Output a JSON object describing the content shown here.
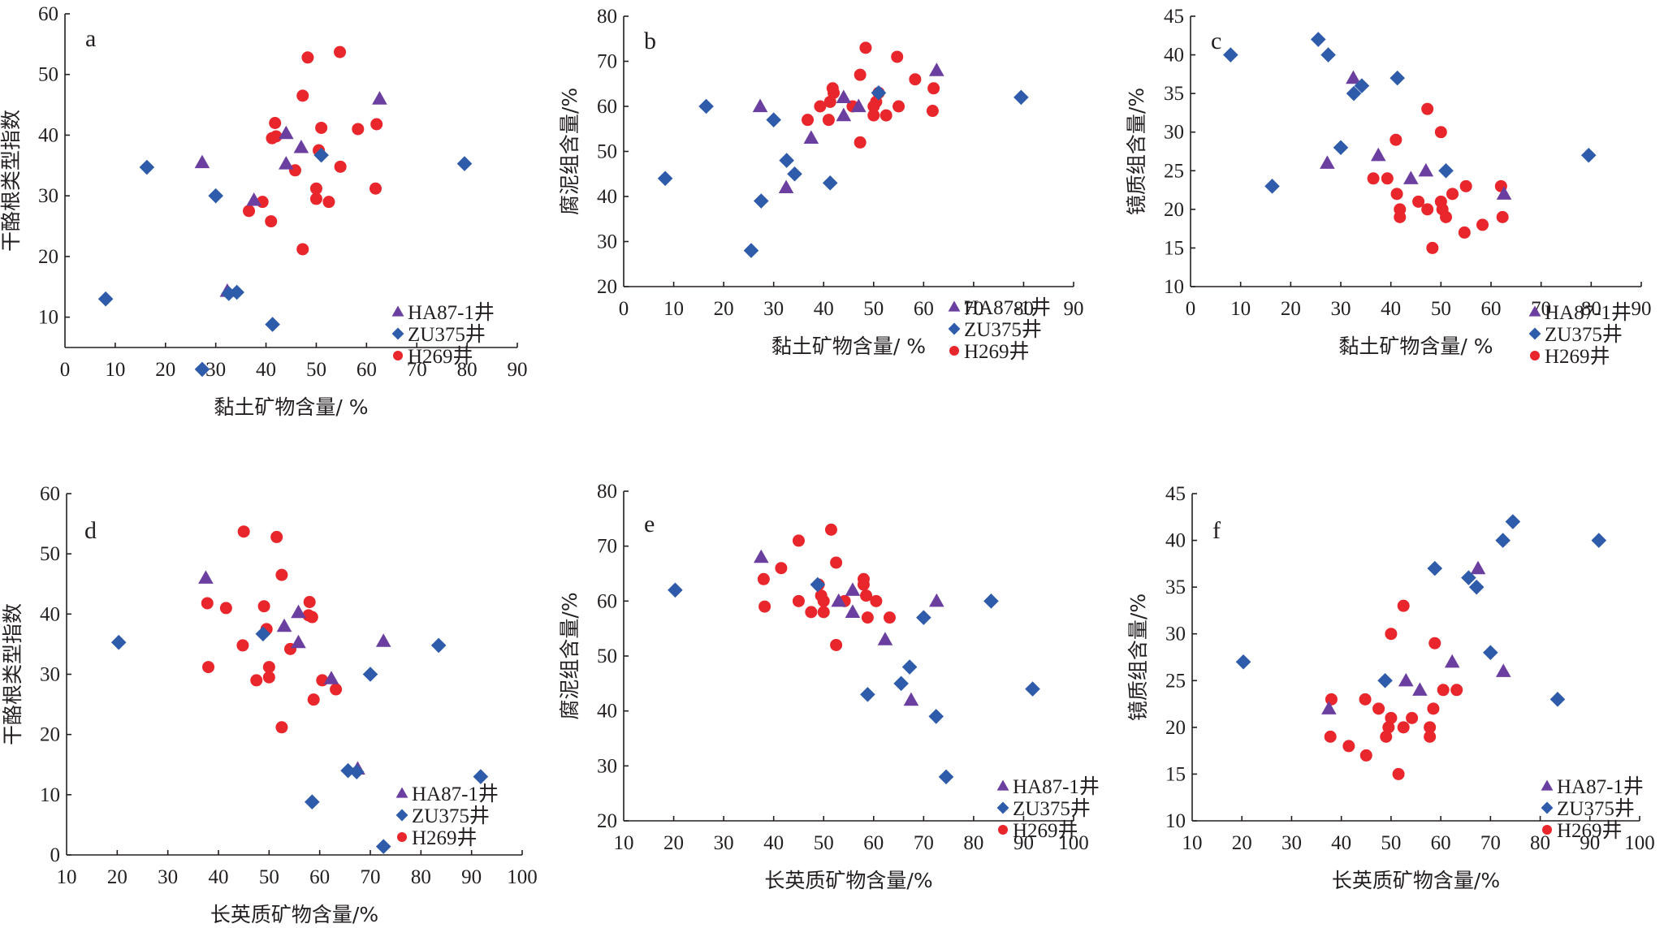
{
  "figure": {
    "series_styles": [
      {
        "name": "HA87-1井",
        "marker": "triangle",
        "color": "#6b3fa0"
      },
      {
        "name": "ZU375井",
        "marker": "diamond",
        "color": "#2f5caa"
      },
      {
        "name": "H269井",
        "marker": "circle",
        "color": "#e8262b"
      }
    ]
  },
  "chart_data": [
    {
      "type": "scatter",
      "panel": "a",
      "title": "",
      "xlabel": "黏土矿物含量/ %",
      "ylabel": "干酪根类型指数",
      "xlim": [
        0,
        90
      ],
      "ylim": [
        5,
        60
      ],
      "xticks": [
        0,
        10,
        20,
        30,
        40,
        50,
        60,
        70,
        80,
        90
      ],
      "yticks": [
        10,
        20,
        30,
        40,
        50,
        60
      ],
      "legend_position": "bottom-right",
      "series": [
        {
          "name": "HA87-1井",
          "points": [
            [
              27.3,
              35.5
            ],
            [
              32.3,
              14.3
            ],
            [
              37.6,
              29.3
            ],
            [
              44.0,
              40.3
            ],
            [
              44.0,
              35.3
            ],
            [
              47.0,
              38.0
            ],
            [
              62.6,
              46.0
            ]
          ]
        },
        {
          "name": "ZU375井",
          "points": [
            [
              8.1,
              13.0
            ],
            [
              16.3,
              34.7
            ],
            [
              27.3,
              1.4
            ],
            [
              30.0,
              30.0
            ],
            [
              32.6,
              13.9
            ],
            [
              34.2,
              14.1
            ],
            [
              41.3,
              8.8
            ],
            [
              51.0,
              36.7
            ],
            [
              79.5,
              35.3
            ]
          ]
        },
        {
          "name": "H269井",
          "points": [
            [
              36.6,
              27.5
            ],
            [
              39.3,
              29.0
            ],
            [
              41.0,
              25.8
            ],
            [
              41.2,
              39.5
            ],
            [
              41.8,
              42.0
            ],
            [
              42.0,
              39.8
            ],
            [
              45.8,
              34.2
            ],
            [
              47.3,
              46.5
            ],
            [
              47.3,
              21.2
            ],
            [
              48.3,
              52.8
            ],
            [
              50.0,
              31.2
            ],
            [
              50.0,
              29.5
            ],
            [
              50.5,
              37.5
            ],
            [
              51.0,
              41.2
            ],
            [
              52.5,
              29.0
            ],
            [
              54.7,
              53.7
            ],
            [
              54.8,
              34.8
            ],
            [
              58.3,
              41.0
            ],
            [
              61.8,
              31.2
            ],
            [
              62.0,
              41.8
            ]
          ]
        }
      ]
    },
    {
      "type": "scatter",
      "panel": "b",
      "title": "",
      "xlabel": "黏土矿物含量/ %",
      "ylabel": "腐泥组含量/%",
      "xlim": [
        0,
        90
      ],
      "ylim": [
        20,
        80
      ],
      "xticks": [
        0,
        10,
        20,
        30,
        40,
        50,
        60,
        70,
        80,
        90
      ],
      "yticks": [
        20,
        30,
        40,
        50,
        60,
        70,
        80
      ],
      "legend_position": "bottom-right",
      "series": [
        {
          "name": "HA87-1井",
          "points": [
            [
              27.3,
              60
            ],
            [
              32.5,
              42
            ],
            [
              37.5,
              53
            ],
            [
              44.0,
              62
            ],
            [
              44.0,
              58
            ],
            [
              47.0,
              60
            ],
            [
              62.6,
              68
            ]
          ]
        },
        {
          "name": "ZU375井",
          "points": [
            [
              8.3,
              44
            ],
            [
              16.5,
              60
            ],
            [
              25.5,
              28
            ],
            [
              27.5,
              39
            ],
            [
              30.0,
              57
            ],
            [
              32.6,
              48
            ],
            [
              34.2,
              45
            ],
            [
              41.3,
              43
            ],
            [
              51.0,
              63
            ],
            [
              79.5,
              62
            ]
          ]
        },
        {
          "name": "H269井",
          "points": [
            [
              36.8,
              57
            ],
            [
              39.3,
              60
            ],
            [
              41.0,
              57
            ],
            [
              41.3,
              61
            ],
            [
              41.8,
              64
            ],
            [
              42.0,
              63
            ],
            [
              45.8,
              60
            ],
            [
              47.3,
              67
            ],
            [
              47.3,
              52
            ],
            [
              48.4,
              73
            ],
            [
              50.0,
              60
            ],
            [
              50.0,
              58
            ],
            [
              50.5,
              61
            ],
            [
              51.0,
              63
            ],
            [
              52.5,
              58
            ],
            [
              54.7,
              71
            ],
            [
              55.0,
              60
            ],
            [
              58.3,
              66
            ],
            [
              62.0,
              64
            ],
            [
              61.8,
              59
            ]
          ]
        }
      ]
    },
    {
      "type": "scatter",
      "panel": "c",
      "title": "",
      "xlabel": "黏土矿物含量/ %",
      "ylabel": "镜质组含量/%",
      "xlim": [
        0,
        90
      ],
      "ylim": [
        10,
        45
      ],
      "xticks": [
        0,
        10,
        20,
        30,
        40,
        50,
        60,
        70,
        80,
        90
      ],
      "yticks": [
        10,
        15,
        20,
        25,
        30,
        35,
        40,
        45
      ],
      "legend_position": "bottom-right",
      "series": [
        {
          "name": "HA87-1井",
          "points": [
            [
              27.3,
              26
            ],
            [
              32.5,
              37
            ],
            [
              37.5,
              27
            ],
            [
              44.0,
              24
            ],
            [
              47.0,
              25
            ],
            [
              62.6,
              22
            ]
          ]
        },
        {
          "name": "ZU375井",
          "points": [
            [
              8.0,
              40
            ],
            [
              16.3,
              23
            ],
            [
              25.5,
              42
            ],
            [
              27.5,
              40
            ],
            [
              30.0,
              28
            ],
            [
              32.6,
              35
            ],
            [
              34.2,
              36
            ],
            [
              41.3,
              37
            ],
            [
              51.0,
              25
            ],
            [
              79.5,
              27
            ]
          ]
        },
        {
          "name": "H269井",
          "points": [
            [
              36.5,
              24
            ],
            [
              39.3,
              24
            ],
            [
              41.0,
              29
            ],
            [
              41.2,
              22
            ],
            [
              41.8,
              20
            ],
            [
              41.8,
              19
            ],
            [
              45.5,
              21
            ],
            [
              47.3,
              33
            ],
            [
              47.3,
              20
            ],
            [
              48.3,
              15
            ],
            [
              50.0,
              30
            ],
            [
              50.0,
              21
            ],
            [
              50.3,
              20
            ],
            [
              51.0,
              19
            ],
            [
              52.3,
              22
            ],
            [
              54.7,
              17
            ],
            [
              55.0,
              23
            ],
            [
              58.3,
              18
            ],
            [
              62.0,
              23
            ],
            [
              62.3,
              19
            ]
          ]
        }
      ]
    },
    {
      "type": "scatter",
      "panel": "d",
      "title": "",
      "xlabel": "长英质矿物含量/%",
      "ylabel": "干酪根类型指数",
      "xlim": [
        10,
        100
      ],
      "ylim": [
        0,
        60
      ],
      "xticks": [
        10,
        20,
        30,
        40,
        50,
        60,
        70,
        80,
        90,
        100
      ],
      "yticks": [
        0,
        10,
        20,
        30,
        40,
        50,
        60
      ],
      "legend_position": "bottom-right",
      "series": [
        {
          "name": "HA87-1井",
          "points": [
            [
              37.5,
              46.0
            ],
            [
              53.0,
              38.0
            ],
            [
              55.8,
              40.3
            ],
            [
              55.8,
              35.3
            ],
            [
              62.3,
              29.3
            ],
            [
              67.5,
              14.3
            ],
            [
              72.6,
              35.5
            ]
          ]
        },
        {
          "name": "ZU375井",
          "points": [
            [
              20.3,
              35.3
            ],
            [
              48.8,
              36.7
            ],
            [
              58.5,
              8.8
            ],
            [
              65.6,
              14.0
            ],
            [
              67.3,
              13.8
            ],
            [
              70.0,
              30.0
            ],
            [
              72.6,
              1.4
            ],
            [
              83.5,
              34.8
            ],
            [
              91.8,
              13.0
            ]
          ]
        },
        {
          "name": "H269井",
          "points": [
            [
              37.8,
              41.8
            ],
            [
              38.0,
              31.2
            ],
            [
              41.5,
              41.0
            ],
            [
              44.8,
              34.8
            ],
            [
              45.0,
              53.7
            ],
            [
              47.5,
              29.0
            ],
            [
              49.0,
              41.3
            ],
            [
              49.5,
              37.5
            ],
            [
              50.0,
              31.2
            ],
            [
              50.0,
              29.5
            ],
            [
              51.5,
              52.8
            ],
            [
              52.5,
              46.5
            ],
            [
              52.5,
              21.2
            ],
            [
              54.2,
              34.2
            ],
            [
              57.8,
              39.8
            ],
            [
              58.0,
              42.0
            ],
            [
              58.5,
              39.5
            ],
            [
              58.8,
              25.8
            ],
            [
              60.5,
              29.0
            ],
            [
              63.2,
              27.5
            ]
          ]
        }
      ]
    },
    {
      "type": "scatter",
      "panel": "e",
      "title": "",
      "xlabel": "长英质矿物含量/%",
      "ylabel": "腐泥组含量/%",
      "xlim": [
        10,
        100
      ],
      "ylim": [
        20,
        80
      ],
      "xticks": [
        10,
        20,
        30,
        40,
        50,
        60,
        70,
        80,
        90,
        100
      ],
      "yticks": [
        20,
        30,
        40,
        50,
        60,
        70,
        80
      ],
      "legend_position": "bottom-right",
      "series": [
        {
          "name": "HA87-1井",
          "points": [
            [
              37.5,
              68
            ],
            [
              53.0,
              60
            ],
            [
              55.8,
              62
            ],
            [
              55.8,
              58
            ],
            [
              62.3,
              53
            ],
            [
              67.5,
              42
            ],
            [
              72.6,
              60
            ]
          ]
        },
        {
          "name": "ZU375井",
          "points": [
            [
              20.3,
              62
            ],
            [
              48.8,
              63
            ],
            [
              58.8,
              43
            ],
            [
              65.5,
              45
            ],
            [
              67.2,
              48
            ],
            [
              70.0,
              57
            ],
            [
              72.5,
              39
            ],
            [
              74.5,
              28
            ],
            [
              83.5,
              60
            ],
            [
              91.8,
              44
            ]
          ]
        },
        {
          "name": "H269井",
          "points": [
            [
              38.0,
              64
            ],
            [
              38.2,
              59
            ],
            [
              41.5,
              66
            ],
            [
              45.0,
              71
            ],
            [
              45.0,
              60
            ],
            [
              47.5,
              58
            ],
            [
              49.0,
              63
            ],
            [
              49.5,
              61
            ],
            [
              50.0,
              60
            ],
            [
              50.0,
              58
            ],
            [
              51.5,
              73
            ],
            [
              52.5,
              67
            ],
            [
              52.5,
              52
            ],
            [
              54.2,
              60
            ],
            [
              58.0,
              64
            ],
            [
              58.0,
              63
            ],
            [
              58.5,
              61
            ],
            [
              58.8,
              57
            ],
            [
              60.5,
              60
            ],
            [
              63.2,
              57
            ]
          ]
        }
      ]
    },
    {
      "type": "scatter",
      "panel": "f",
      "title": "",
      "xlabel": "长英质矿物含量/%",
      "ylabel": "镜质组含量/%",
      "xlim": [
        10,
        100
      ],
      "ylim": [
        10,
        45
      ],
      "xticks": [
        10,
        20,
        30,
        40,
        50,
        60,
        70,
        80,
        90,
        100
      ],
      "yticks": [
        10,
        15,
        20,
        25,
        30,
        35,
        40,
        45
      ],
      "legend_position": "bottom-right",
      "series": [
        {
          "name": "HA87-1井",
          "points": [
            [
              37.5,
              22
            ],
            [
              53.0,
              25
            ],
            [
              55.8,
              24
            ],
            [
              62.3,
              27
            ],
            [
              67.5,
              37
            ],
            [
              72.6,
              26
            ]
          ]
        },
        {
          "name": "ZU375井",
          "points": [
            [
              20.3,
              27
            ],
            [
              48.8,
              25
            ],
            [
              58.8,
              37
            ],
            [
              65.6,
              36
            ],
            [
              67.2,
              35
            ],
            [
              70.0,
              28
            ],
            [
              72.5,
              40
            ],
            [
              74.5,
              42
            ],
            [
              83.5,
              23
            ],
            [
              91.8,
              40
            ]
          ]
        },
        {
          "name": "H269井",
          "points": [
            [
              37.8,
              19
            ],
            [
              38.0,
              23
            ],
            [
              41.5,
              18
            ],
            [
              44.8,
              23
            ],
            [
              45.0,
              17
            ],
            [
              47.5,
              22
            ],
            [
              49.0,
              19
            ],
            [
              49.5,
              20
            ],
            [
              50.0,
              30
            ],
            [
              50.0,
              21
            ],
            [
              51.5,
              15
            ],
            [
              52.5,
              33
            ],
            [
              52.5,
              20
            ],
            [
              54.2,
              21
            ],
            [
              57.8,
              20
            ],
            [
              57.8,
              19
            ],
            [
              58.5,
              22
            ],
            [
              58.8,
              29
            ],
            [
              60.5,
              24
            ],
            [
              63.2,
              24
            ]
          ]
        }
      ]
    }
  ]
}
